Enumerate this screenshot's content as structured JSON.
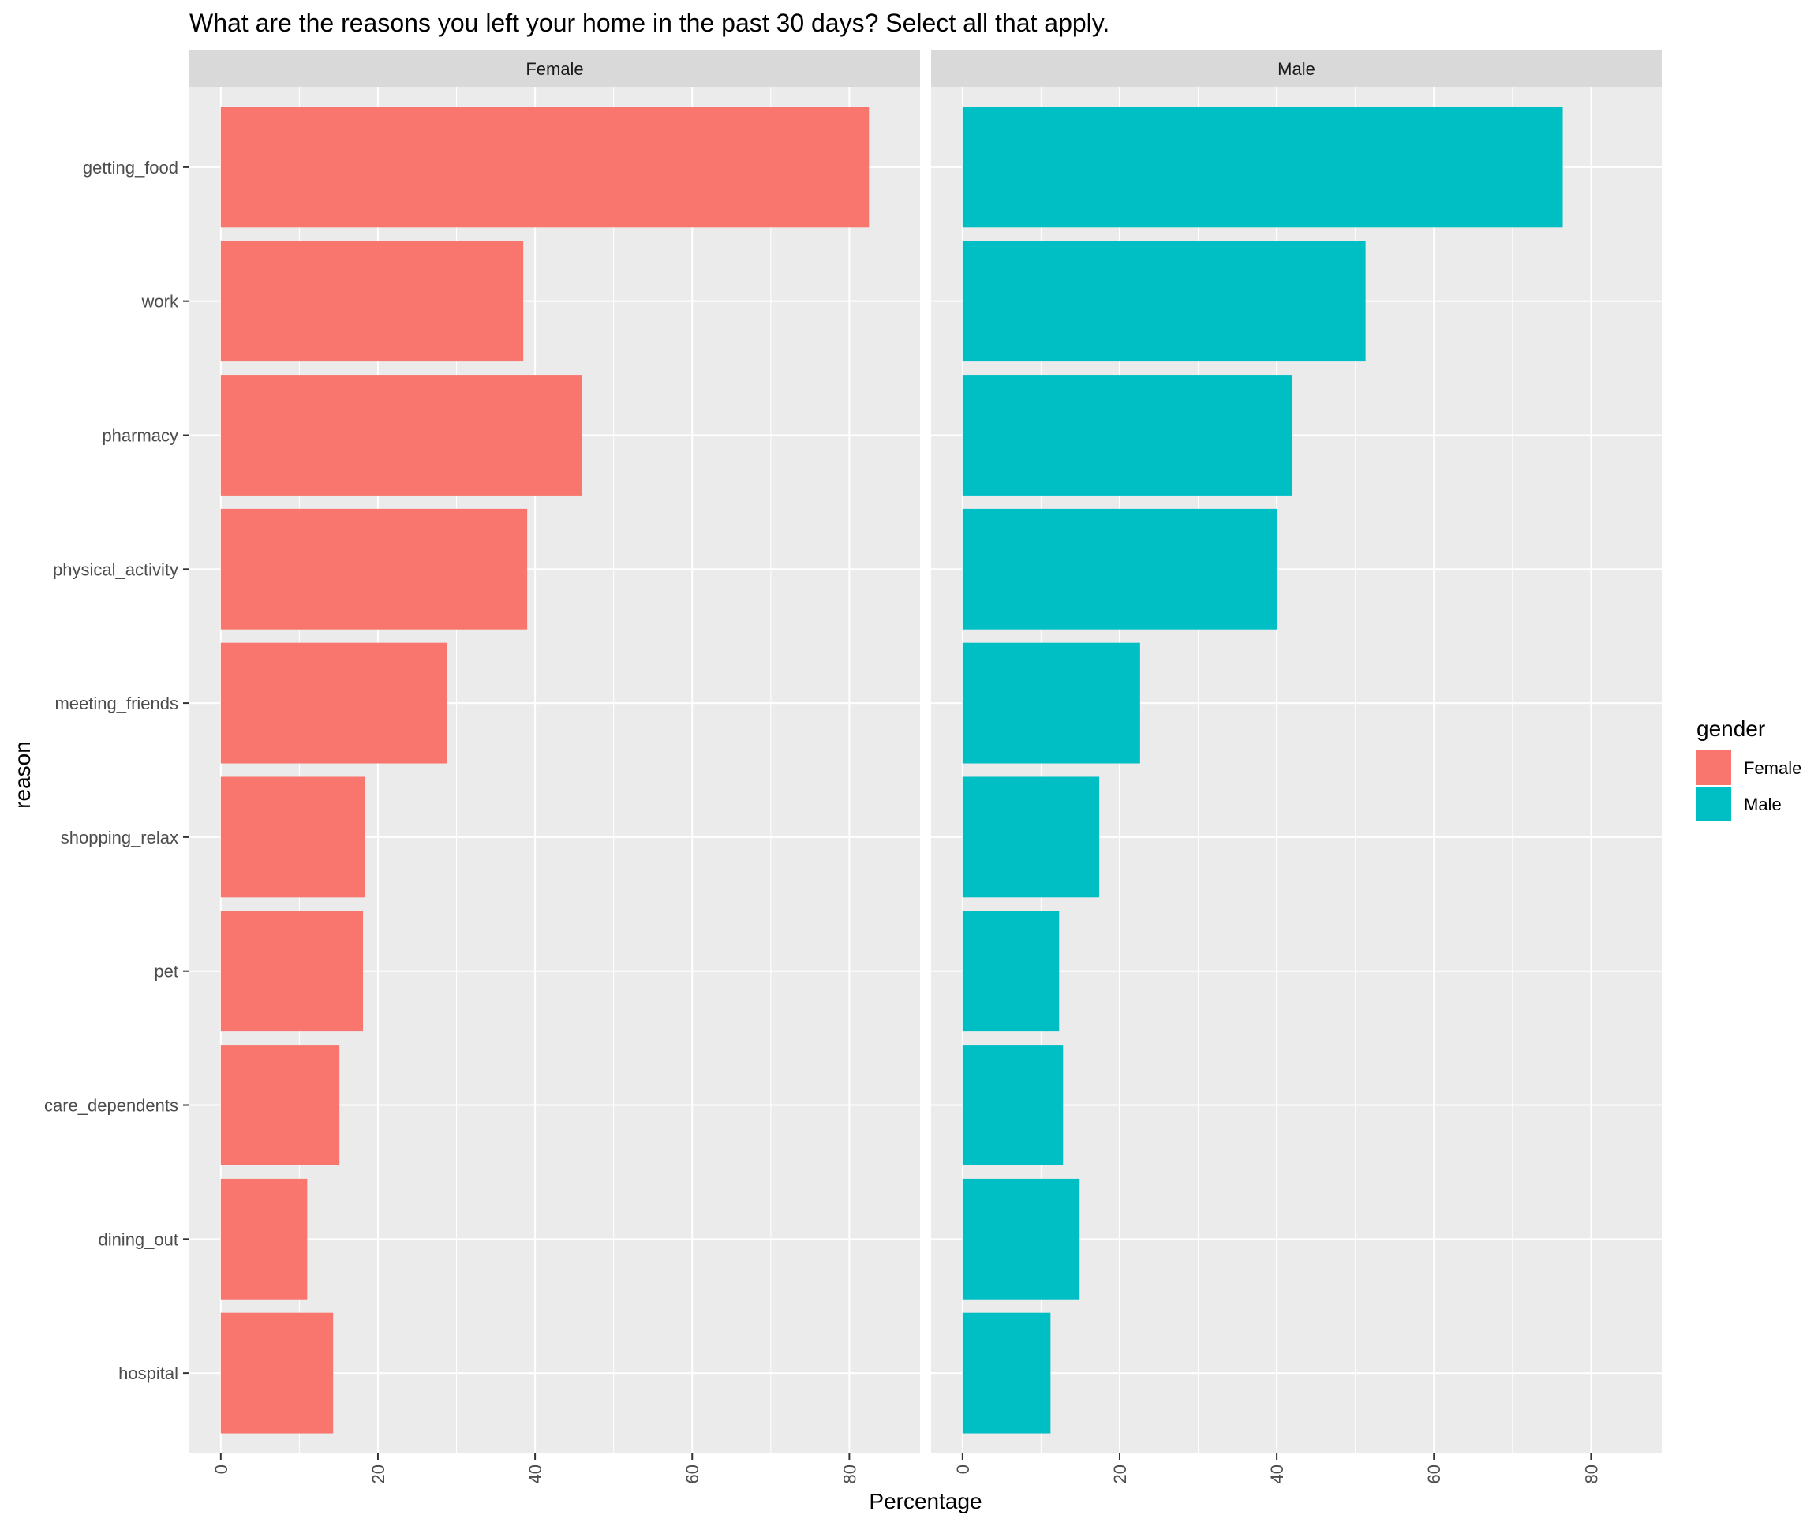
{
  "chart_data": {
    "type": "bar",
    "orientation": "horizontal",
    "title": "What are the reasons you left your home in the past 30 days? Select all that apply.",
    "xlabel": "Percentage",
    "ylabel": "reason",
    "xlim": [
      -4,
      89
    ],
    "x_ticks": [
      0,
      20,
      40,
      60,
      80
    ],
    "grid": true,
    "facet_by": "gender",
    "categories": [
      "getting_food",
      "work",
      "pharmacy",
      "physical_activity",
      "meeting_friends",
      "shopping_relax",
      "pet",
      "care_dependents",
      "dining_out",
      "hospital"
    ],
    "series": [
      {
        "name": "Female",
        "color": "#F8766D",
        "values": [
          82.5,
          38.5,
          46.0,
          39.0,
          28.8,
          18.4,
          18.1,
          15.1,
          11.0,
          14.3
        ]
      },
      {
        "name": "Male",
        "color": "#00BFC4",
        "values": [
          76.4,
          51.3,
          42.0,
          40.0,
          22.6,
          17.4,
          12.3,
          12.8,
          14.9,
          11.2
        ]
      }
    ],
    "legend": {
      "title": "gender",
      "position": "right",
      "entries": [
        {
          "label": "Female",
          "color": "#F8766D"
        },
        {
          "label": "Male",
          "color": "#00BFC4"
        }
      ]
    },
    "colors": {
      "panel_bg": "#EBEBEB",
      "strip_bg": "#D9D9D9",
      "grid_major": "#FFFFFF",
      "tick_color": "#333333"
    }
  }
}
